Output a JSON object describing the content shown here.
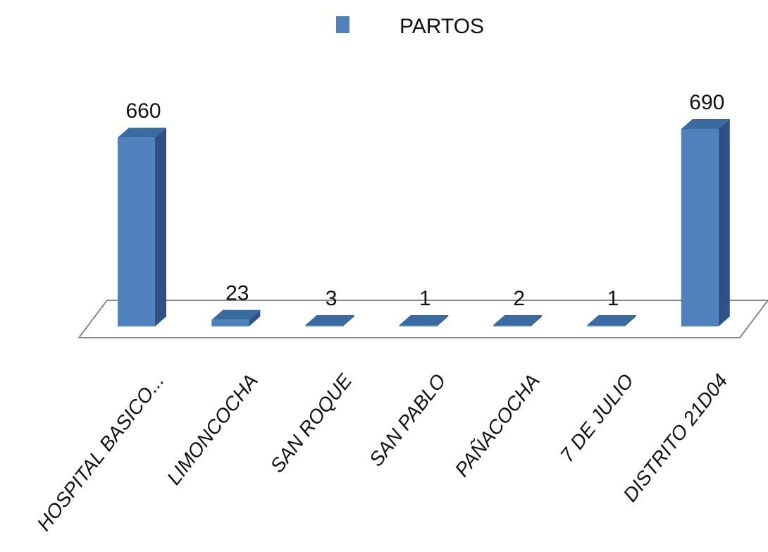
{
  "chart_data": {
    "type": "bar",
    "style": "3d-column",
    "title": "",
    "xlabel": "",
    "ylabel": "",
    "categories": [
      "HOSPITAL BASICO...",
      "LIMONCOCHA",
      "SAN ROQUE",
      "SAN PABLO",
      "PAÑACOCHA",
      "7 DE JULIO",
      "DISTRITO 21D04"
    ],
    "series": [
      {
        "name": "PARTOS",
        "values": [
          660,
          23,
          3,
          1,
          2,
          1,
          690
        ]
      }
    ],
    "ylim": [
      0,
      690
    ],
    "grid": false,
    "legend_position": "top-center",
    "colors": {
      "front": "#4f81bd",
      "top": "#3b6aa0",
      "side": "#2f5286",
      "floor_stroke": "#888888",
      "floor_fill": "#ffffff"
    }
  }
}
